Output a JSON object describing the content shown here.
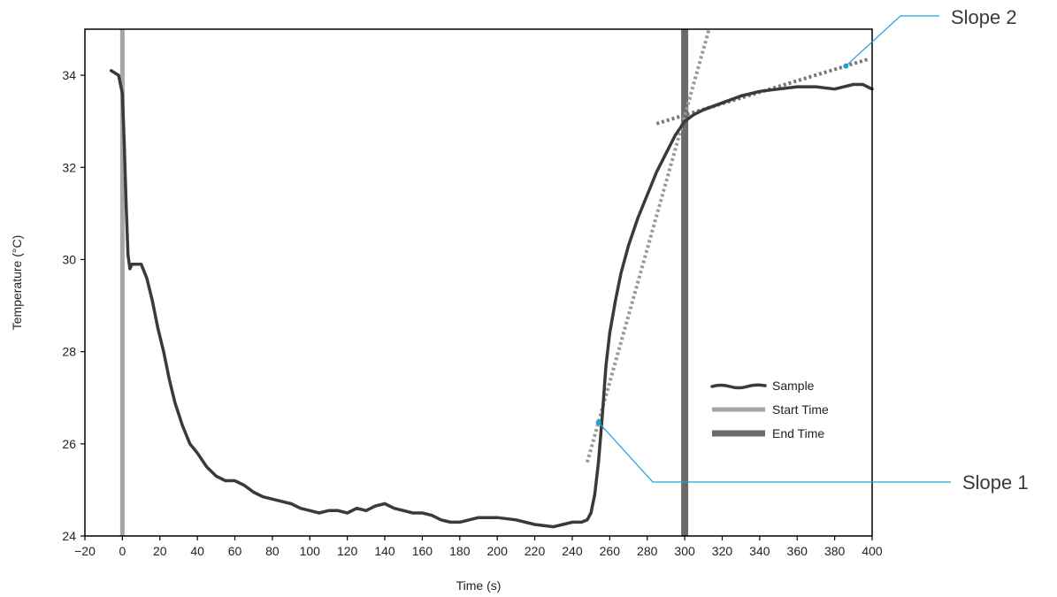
{
  "chart_data": {
    "type": "line",
    "title": "",
    "xlabel": "Time (s)",
    "ylabel": "Temperature (°C)",
    "xlim": [
      -20,
      400
    ],
    "ylim": [
      24,
      35
    ],
    "xticks": [
      -20,
      0,
      20,
      40,
      60,
      80,
      100,
      120,
      140,
      160,
      180,
      200,
      220,
      240,
      260,
      280,
      300,
      320,
      340,
      360,
      380,
      400
    ],
    "xtick_labels": [
      "−20",
      "0",
      "20",
      "40",
      "60",
      "80",
      "100",
      "120",
      "140",
      "160",
      "180",
      "200",
      "220",
      "240",
      "260",
      "280",
      "300",
      "320",
      "340",
      "360",
      "380",
      "400"
    ],
    "yticks": [
      24,
      26,
      28,
      30,
      32,
      34
    ],
    "ytick_labels": [
      "24",
      "26",
      "28",
      "30",
      "32",
      "34"
    ],
    "grid": false,
    "legend_position": "lower-right",
    "series": [
      {
        "name": "Sample",
        "color": "#3a3a3a",
        "x": [
          -6,
          -2,
          0,
          1,
          2,
          3,
          4,
          5,
          7,
          10,
          13,
          16,
          19,
          22,
          25,
          28,
          32,
          36,
          40,
          45,
          50,
          55,
          60,
          65,
          70,
          75,
          80,
          85,
          90,
          95,
          100,
          105,
          110,
          115,
          120,
          125,
          130,
          135,
          140,
          145,
          150,
          155,
          160,
          165,
          170,
          175,
          180,
          185,
          190,
          200,
          210,
          220,
          230,
          235,
          240,
          245,
          248,
          250,
          252,
          254,
          256,
          258,
          260,
          263,
          266,
          270,
          275,
          280,
          285,
          290,
          295,
          300,
          305,
          310,
          320,
          330,
          340,
          350,
          360,
          370,
          380,
          385,
          390,
          395,
          400
        ],
        "y": [
          34.1,
          34.0,
          33.6,
          32.5,
          31.2,
          30.1,
          29.8,
          29.9,
          29.9,
          29.9,
          29.6,
          29.1,
          28.5,
          28.0,
          27.4,
          26.9,
          26.4,
          26.0,
          25.8,
          25.5,
          25.3,
          25.2,
          25.2,
          25.1,
          24.95,
          24.85,
          24.8,
          24.75,
          24.7,
          24.6,
          24.55,
          24.5,
          24.55,
          24.55,
          24.5,
          24.6,
          24.55,
          24.65,
          24.7,
          24.6,
          24.55,
          24.5,
          24.5,
          24.45,
          24.35,
          24.3,
          24.3,
          24.35,
          24.4,
          24.4,
          24.35,
          24.25,
          24.2,
          24.25,
          24.3,
          24.3,
          24.35,
          24.5,
          24.9,
          25.6,
          26.6,
          27.7,
          28.4,
          29.1,
          29.7,
          30.3,
          30.9,
          31.4,
          31.9,
          32.3,
          32.7,
          33.0,
          33.15,
          33.25,
          33.4,
          33.55,
          33.65,
          33.7,
          33.75,
          33.75,
          33.7,
          33.75,
          33.8,
          33.8,
          33.7
        ]
      }
    ],
    "start_time": {
      "name": "Start Time",
      "x": 0,
      "color": "#a6a6a6"
    },
    "end_time": {
      "name": "End Time",
      "x": 300,
      "color": "#6a6a6a"
    },
    "slopes": [
      {
        "label": "Slope 1",
        "x": [
          248,
          313
        ],
        "y": [
          25.6,
          35.0
        ],
        "color": "#999999"
      },
      {
        "label": "Slope 2",
        "x": [
          285,
          398
        ],
        "y": [
          32.95,
          34.35
        ],
        "color": "#777777"
      }
    ],
    "callout_color": "#1aa3d4"
  }
}
